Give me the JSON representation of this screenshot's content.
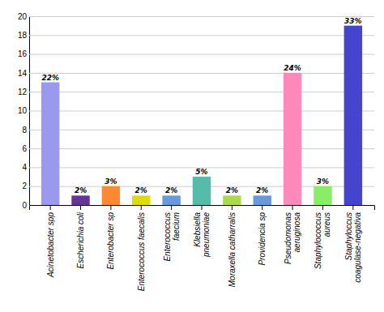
{
  "chart_data": {
    "type": "bar",
    "categories": [
      "Acinetobacter spp",
      "Escherichia coli",
      "Enterobacter sp",
      "Enterococcus faecalis",
      "Enterococcus\nfaecium",
      "Klebsiella\npneumoniae",
      "Moraxella catharralis",
      "Providencia sp",
      "Pseudomonas\naeruginosa",
      "Staphylococcus\naureus",
      "Staphyloccus\ncoagulase-negativa"
    ],
    "values": [
      13,
      1,
      2,
      1,
      1,
      3,
      1,
      1,
      14,
      2,
      19
    ],
    "annotations": [
      "22%",
      "2%",
      "3%",
      "2%",
      "2%",
      "5%",
      "2%",
      "2%",
      "24%",
      "3%",
      "33%"
    ],
    "colors": [
      "#9999EE",
      "#663399",
      "#FF8833",
      "#DDDD00",
      "#6699DD",
      "#55BBAA",
      "#AADD44",
      "#6699DD",
      "#FF88BB",
      "#88EE66",
      "#4444CC"
    ],
    "ylim": [
      0,
      20
    ],
    "yticks": [
      0,
      2,
      4,
      6,
      8,
      10,
      12,
      14,
      16,
      18,
      20
    ],
    "grid": true
  }
}
